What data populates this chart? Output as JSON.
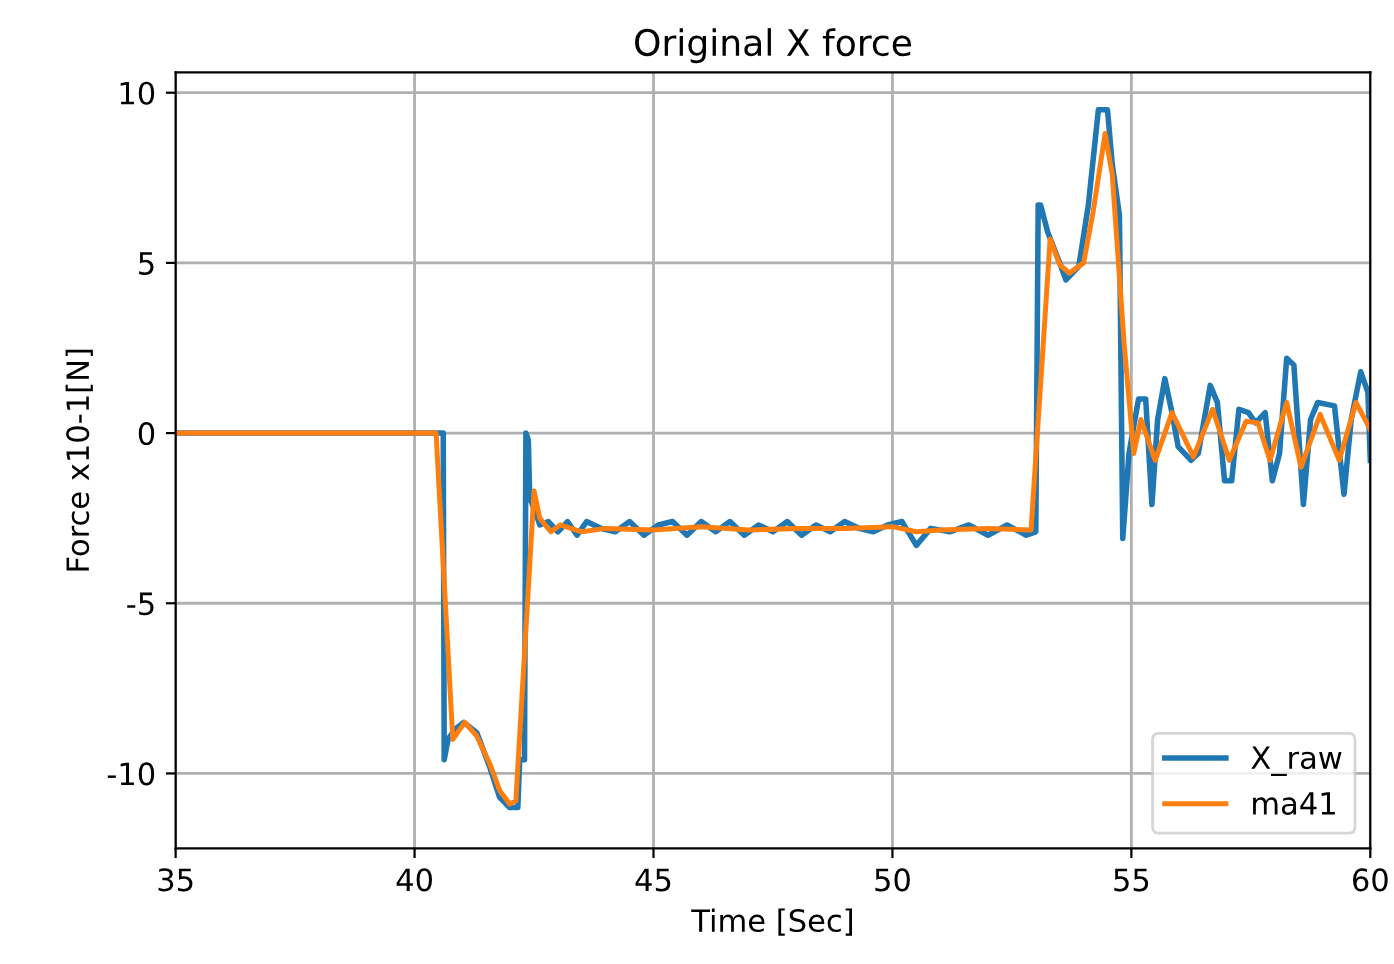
{
  "chart_data": {
    "type": "line",
    "title": "Original X force",
    "xlabel": "Time [Sec]",
    "ylabel": "Force x10-1[N]",
    "xlim": [
      35,
      60
    ],
    "ylim": [
      -12.2,
      10.6
    ],
    "xticks": [
      35,
      40,
      45,
      50,
      55,
      60
    ],
    "yticks": [
      -10,
      -5,
      0,
      5,
      10
    ],
    "grid": true,
    "legend": "bottom right",
    "series": [
      {
        "name": "X_raw",
        "color": "#1f77b4",
        "x": [
          35,
          40.55,
          40.6,
          40.62,
          40.7,
          40.85,
          41.03,
          41.3,
          41.57,
          41.78,
          41.99,
          42.16,
          42.2,
          42.3,
          42.33,
          42.38,
          42.41,
          42.55,
          42.62,
          42.8,
          43.0,
          43.2,
          43.4,
          43.6,
          43.9,
          44.2,
          44.5,
          44.8,
          45.1,
          45.4,
          45.7,
          46.0,
          46.3,
          46.6,
          46.9,
          47.2,
          47.5,
          47.8,
          48.1,
          48.4,
          48.7,
          49.0,
          49.3,
          49.6,
          49.9,
          50.2,
          50.5,
          50.8,
          51.2,
          51.6,
          52.0,
          52.4,
          52.8,
          53.0,
          53.05,
          53.1,
          53.25,
          53.5,
          53.63,
          53.9,
          54.1,
          54.31,
          54.5,
          54.6,
          54.75,
          54.82,
          54.95,
          55.15,
          55.3,
          55.43,
          55.55,
          55.7,
          55.85,
          55.98,
          56.25,
          56.4,
          56.65,
          56.8,
          56.95,
          57.1,
          57.25,
          57.45,
          57.6,
          57.8,
          57.95,
          58.1,
          58.25,
          58.4,
          58.6,
          58.75,
          58.9,
          59.25,
          59.45,
          59.6,
          59.8,
          59.95,
          60
        ],
        "values": [
          0,
          0,
          0,
          -9.6,
          -9.0,
          -8.7,
          -8.5,
          -8.8,
          -9.8,
          -10.7,
          -11.0,
          -11.0,
          -9.6,
          -9.6,
          0,
          -0.2,
          -1.9,
          -2.4,
          -2.7,
          -2.6,
          -2.9,
          -2.6,
          -3.0,
          -2.6,
          -2.8,
          -2.9,
          -2.6,
          -3.0,
          -2.7,
          -2.6,
          -3.0,
          -2.6,
          -2.9,
          -2.6,
          -3.0,
          -2.7,
          -2.9,
          -2.6,
          -3.0,
          -2.7,
          -2.9,
          -2.6,
          -2.8,
          -2.9,
          -2.7,
          -2.6,
          -3.3,
          -2.8,
          -2.9,
          -2.7,
          -3.0,
          -2.7,
          -3.0,
          -2.9,
          6.7,
          6.7,
          5.9,
          5.0,
          4.5,
          4.9,
          6.7,
          9.5,
          9.5,
          7.9,
          6.4,
          -3.1,
          -0.6,
          1.0,
          1.0,
          -2.1,
          0.4,
          1.6,
          0.6,
          -0.4,
          -0.8,
          -0.6,
          1.4,
          0.9,
          -1.4,
          -1.4,
          0.7,
          0.6,
          0.3,
          0.6,
          -1.4,
          -0.6,
          2.2,
          2.0,
          -2.1,
          0.4,
          0.9,
          0.8,
          -1.8,
          0.4,
          1.8,
          1.2,
          -0.8
        ]
      },
      {
        "name": "ma41",
        "color": "#ff7f0e",
        "x": [
          35,
          40.45,
          40.8,
          41.05,
          41.3,
          41.57,
          41.78,
          41.99,
          42.12,
          42.5,
          42.62,
          42.85,
          43.05,
          43.5,
          44,
          45,
          46,
          47,
          48,
          49,
          50,
          50.5,
          51,
          52,
          52.9,
          53.3,
          53.5,
          53.7,
          54.0,
          54.2,
          54.45,
          54.6,
          54.85,
          55.05,
          55.2,
          55.5,
          55.85,
          56.3,
          56.7,
          57.05,
          57.4,
          57.65,
          57.9,
          58.25,
          58.55,
          58.95,
          59.35,
          59.7,
          60
        ],
        "values": [
          0,
          0,
          -9.0,
          -8.5,
          -8.9,
          -9.7,
          -10.5,
          -10.9,
          -10.8,
          -1.7,
          -2.5,
          -2.9,
          -2.7,
          -2.9,
          -2.8,
          -2.85,
          -2.75,
          -2.85,
          -2.8,
          -2.8,
          -2.75,
          -2.9,
          -2.85,
          -2.8,
          -2.85,
          5.7,
          4.95,
          4.7,
          5.0,
          6.5,
          8.8,
          7.6,
          2.6,
          -0.6,
          0.4,
          -0.8,
          0.6,
          -0.7,
          0.7,
          -0.8,
          0.35,
          0.3,
          -0.8,
          0.9,
          -1.0,
          0.55,
          -0.8,
          0.9,
          0.1
        ]
      }
    ]
  }
}
